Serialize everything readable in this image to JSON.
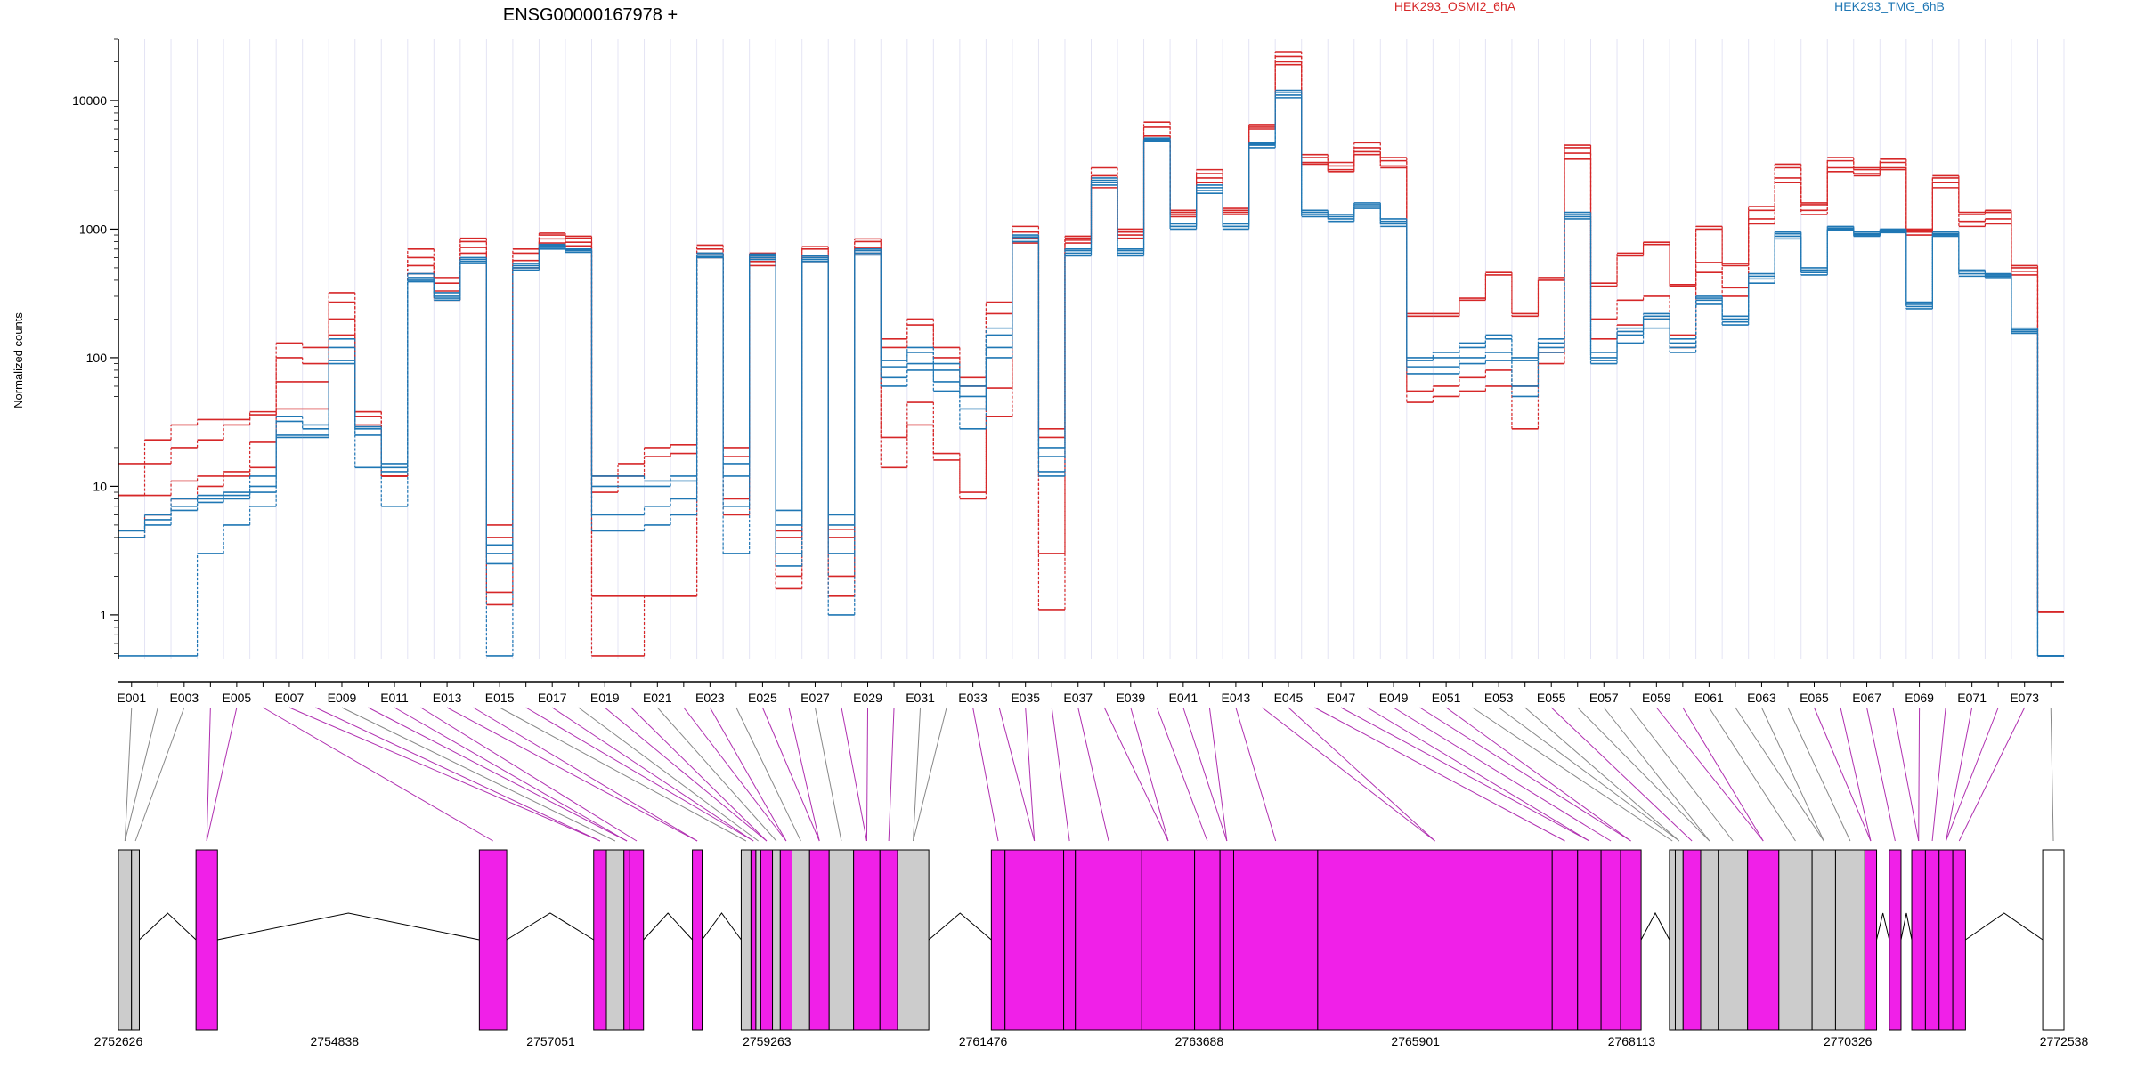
{
  "chart_data": {
    "type": "line",
    "title": "ENSG00000167978 +",
    "ylabel": "Normalized counts",
    "y_scale": "log",
    "ylim": [
      0.5,
      30000
    ],
    "y_ticks": [
      {
        "value": 1,
        "label": "1"
      },
      {
        "value": 10,
        "label": "10"
      },
      {
        "value": 100,
        "label": "100"
      },
      {
        "value": 1000,
        "label": "1000"
      },
      {
        "value": 10000,
        "label": "10000"
      }
    ],
    "exon_labels": [
      "E001",
      "E003",
      "E005",
      "E007",
      "E009",
      "E011",
      "E013",
      "E015",
      "E017",
      "E019",
      "E021",
      "E023",
      "E025",
      "E027",
      "E029",
      "E031",
      "E033",
      "E035",
      "E037",
      "E039",
      "E041",
      "E043",
      "E045",
      "E047",
      "E049",
      "E051",
      "E053",
      "E055",
      "E057",
      "E059",
      "E061",
      "E063",
      "E065",
      "E067",
      "E069",
      "E071",
      "E073"
    ],
    "legend_placement": "top",
    "series": [
      {
        "name": "HEK293_OSMI2_6hA",
        "color": "#d62728",
        "values": [
          15,
          23,
          30,
          33,
          33,
          38,
          130,
          120,
          320,
          38,
          12,
          700,
          420,
          850,
          5,
          700,
          930,
          880,
          12,
          15,
          20,
          21,
          750,
          20,
          650,
          4.5,
          730,
          4.6,
          840,
          140,
          200,
          120,
          70,
          270,
          1050,
          28,
          880,
          3000,
          1000,
          6800,
          1400,
          2900,
          1450,
          6500,
          24000,
          3800,
          3300,
          4700,
          3600,
          220,
          220,
          290,
          460,
          220,
          420,
          4500,
          380,
          650,
          790,
          370,
          1050,
          540,
          1500,
          3200,
          1600,
          3600,
          3000,
          3500,
          1000,
          2600,
          1350,
          1400,
          520,
          1.05
        ]
      },
      {
        "name": "HEK293_OSMI2_6hA",
        "color": "#d62728",
        "values": [
          8.5,
          15,
          20,
          23,
          30,
          36,
          100,
          90,
          270,
          38,
          12,
          600,
          380,
          800,
          4,
          650,
          900,
          850,
          9,
          12,
          17,
          18,
          700,
          17,
          600,
          4,
          700,
          4,
          800,
          120,
          180,
          100,
          60,
          220,
          950,
          24,
          850,
          2600,
          950,
          6200,
          1350,
          2700,
          1400,
          6400,
          22000,
          3600,
          3100,
          4300,
          3400,
          210,
          210,
          280,
          440,
          210,
          400,
          4300,
          360,
          620,
          760,
          360,
          1000,
          520,
          1400,
          3000,
          1550,
          3400,
          2900,
          3300,
          980,
          2500,
          1300,
          1350,
          500,
          1.05
        ]
      },
      {
        "name": "HEK293_OSMI2_6hA",
        "color": "#d62728",
        "values": [
          8.5,
          8.5,
          11,
          12,
          13,
          22,
          65,
          65,
          200,
          35,
          12,
          520,
          330,
          720,
          1.5,
          570,
          840,
          790,
          1.4,
          1.4,
          1.4,
          1.4,
          650,
          8,
          560,
          2,
          620,
          2,
          720,
          24,
          45,
          18,
          9,
          58,
          850,
          3,
          820,
          2300,
          900,
          5300,
          1300,
          2500,
          1350,
          6200,
          20000,
          3300,
          2900,
          4000,
          3100,
          55,
          60,
          70,
          80,
          60,
          110,
          3900,
          200,
          280,
          300,
          150,
          550,
          350,
          1200,
          2500,
          1400,
          3000,
          2700,
          3000,
          950,
          2300,
          1150,
          1200,
          470,
          1.05
        ]
      },
      {
        "name": "HEK293_OSMI2_6hA",
        "color": "#d62728",
        "values": [
          4,
          6,
          8,
          10,
          12,
          14,
          40,
          40,
          150,
          30,
          12,
          450,
          280,
          650,
          1.2,
          500,
          780,
          740,
          0.48,
          0.48,
          1.4,
          1.4,
          600,
          6,
          520,
          1.6,
          560,
          1.4,
          650,
          14,
          30,
          16,
          8,
          35,
          780,
          1.1,
          780,
          2100,
          850,
          4800,
          1250,
          2300,
          1300,
          6000,
          19000,
          3200,
          2800,
          3800,
          3000,
          45,
          50,
          55,
          60,
          28,
          90,
          3500,
          140,
          180,
          200,
          120,
          460,
          300,
          1100,
          2300,
          1300,
          2800,
          2600,
          2900,
          900,
          2100,
          1050,
          1100,
          440,
          1.05
        ]
      },
      {
        "name": "HEK293_TMG_6hB",
        "color": "#1f77b4",
        "values": [
          4.5,
          6,
          8,
          8.5,
          9,
          12,
          35,
          30,
          140,
          29,
          15,
          450,
          320,
          600,
          3.5,
          540,
          760,
          700,
          12,
          12,
          11,
          12,
          650,
          15,
          640,
          6.5,
          620,
          6,
          700,
          95,
          120,
          90,
          60,
          170,
          900,
          20,
          700,
          2500,
          700,
          5100,
          1100,
          2200,
          1100,
          4700,
          12000,
          1400,
          1300,
          1600,
          1200,
          100,
          110,
          130,
          150,
          100,
          140,
          1350,
          110,
          170,
          220,
          140,
          300,
          210,
          450,
          950,
          500,
          1050,
          950,
          1000,
          270,
          950,
          480,
          450,
          170,
          0.48
        ]
      },
      {
        "name": "HEK293_TMG_6hB",
        "color": "#1f77b4",
        "values": [
          4,
          5.5,
          7,
          8,
          8.5,
          10,
          32,
          28,
          120,
          28,
          14,
          420,
          300,
          580,
          3,
          520,
          740,
          690,
          10,
          10,
          10,
          11,
          630,
          12,
          620,
          5,
          600,
          5,
          680,
          85,
          110,
          80,
          50,
          150,
          870,
          17,
          680,
          2400,
          680,
          5000,
          1050,
          2100,
          1050,
          4600,
          11500,
          1350,
          1250,
          1550,
          1150,
          95,
          100,
          120,
          140,
          95,
          130,
          1300,
          100,
          160,
          210,
          130,
          290,
          200,
          430,
          920,
          480,
          1020,
          920,
          980,
          260,
          920,
          470,
          440,
          165,
          0.48
        ]
      },
      {
        "name": "HEK293_TMG_6hB",
        "color": "#1f77b4",
        "values": [
          4,
          5,
          6.5,
          7.5,
          8,
          9,
          25,
          25,
          95,
          25,
          13,
          400,
          290,
          560,
          2.5,
          500,
          720,
          680,
          6,
          6,
          7,
          8,
          610,
          7,
          600,
          3,
          580,
          3,
          650,
          70,
          90,
          65,
          40,
          120,
          840,
          13,
          650,
          2300,
          650,
          4900,
          1050,
          2000,
          1050,
          4500,
          11000,
          1300,
          1200,
          1500,
          1100,
          85,
          85,
          100,
          110,
          60,
          120,
          1250,
          95,
          150,
          200,
          120,
          280,
          190,
          410,
          880,
          460,
          1000,
          900,
          960,
          250,
          900,
          450,
          430,
          160,
          0.48
        ]
      },
      {
        "name": "HEK293_TMG_6hB",
        "color": "#1f77b4",
        "values": [
          0.48,
          0.48,
          0.48,
          3,
          5,
          7,
          24,
          24,
          90,
          14,
          7,
          390,
          280,
          540,
          0.48,
          480,
          700,
          660,
          4.5,
          4.5,
          5,
          6,
          600,
          3,
          580,
          2.4,
          560,
          1,
          630,
          60,
          80,
          55,
          28,
          100,
          800,
          12,
          620,
          2200,
          620,
          4800,
          1000,
          1900,
          1000,
          4300,
          10500,
          1250,
          1150,
          1450,
          1050,
          75,
          75,
          90,
          95,
          50,
          110,
          1200,
          90,
          130,
          170,
          110,
          260,
          180,
          380,
          840,
          440,
          980,
          880,
          940,
          240,
          880,
          430,
          420,
          155,
          0.48
        ]
      }
    ],
    "gene_model": {
      "coordinate_labels": [
        "2752626",
        "2754838",
        "2757051",
        "2759263",
        "2761476",
        "2763688",
        "2765901",
        "2768113",
        "2770326",
        "2772538"
      ],
      "coordinate_range": [
        2752626,
        2772538
      ],
      "highlight_color": "#f020e8",
      "non_highlight_color": "#cccccc",
      "exon_ranges": [
        {
          "start": 2752626,
          "end": 2752760,
          "highlight": false
        },
        {
          "start": 2752760,
          "end": 2752840,
          "highlight": false
        },
        {
          "start": 2753420,
          "end": 2753640,
          "highlight": true
        },
        {
          "start": 2756320,
          "end": 2756600,
          "highlight": true
        },
        {
          "start": 2757490,
          "end": 2757620,
          "highlight": true
        },
        {
          "start": 2757620,
          "end": 2757800,
          "highlight": false
        },
        {
          "start": 2757800,
          "end": 2757860,
          "highlight": true
        },
        {
          "start": 2757860,
          "end": 2758000,
          "highlight": true
        },
        {
          "start": 2758500,
          "end": 2758600,
          "highlight": true
        },
        {
          "start": 2759000,
          "end": 2759100,
          "highlight": false
        },
        {
          "start": 2759100,
          "end": 2759150,
          "highlight": true
        },
        {
          "start": 2759150,
          "end": 2759200,
          "highlight": false
        },
        {
          "start": 2759200,
          "end": 2759320,
          "highlight": true
        },
        {
          "start": 2759320,
          "end": 2759400,
          "highlight": false
        },
        {
          "start": 2759400,
          "end": 2759520,
          "highlight": true
        },
        {
          "start": 2759520,
          "end": 2759700,
          "highlight": false
        },
        {
          "start": 2759700,
          "end": 2759900,
          "highlight": true
        },
        {
          "start": 2759900,
          "end": 2760150,
          "highlight": false
        },
        {
          "start": 2760150,
          "end": 2760420,
          "highlight": true
        },
        {
          "start": 2760420,
          "end": 2760600,
          "highlight": true
        },
        {
          "start": 2760600,
          "end": 2760920,
          "highlight": false
        },
        {
          "start": 2761560,
          "end": 2761700,
          "highlight": true
        },
        {
          "start": 2761700,
          "end": 2762300,
          "highlight": true
        },
        {
          "start": 2762300,
          "end": 2762420,
          "highlight": true
        },
        {
          "start": 2762420,
          "end": 2763100,
          "highlight": true
        },
        {
          "start": 2763100,
          "end": 2763640,
          "highlight": true
        },
        {
          "start": 2763640,
          "end": 2763900,
          "highlight": true
        },
        {
          "start": 2763900,
          "end": 2764040,
          "highlight": true
        },
        {
          "start": 2764040,
          "end": 2764900,
          "highlight": true
        },
        {
          "start": 2764900,
          "end": 2767300,
          "highlight": true
        },
        {
          "start": 2767300,
          "end": 2767560,
          "highlight": true
        },
        {
          "start": 2767560,
          "end": 2767800,
          "highlight": true
        },
        {
          "start": 2767800,
          "end": 2768000,
          "highlight": true
        },
        {
          "start": 2768000,
          "end": 2768210,
          "highlight": true
        },
        {
          "start": 2768500,
          "end": 2768560,
          "highlight": false
        },
        {
          "start": 2768560,
          "end": 2768640,
          "highlight": false
        },
        {
          "start": 2768640,
          "end": 2768820,
          "highlight": true
        },
        {
          "start": 2768820,
          "end": 2769000,
          "highlight": false
        },
        {
          "start": 2769000,
          "end": 2769300,
          "highlight": false
        },
        {
          "start": 2769300,
          "end": 2769620,
          "highlight": true
        },
        {
          "start": 2769620,
          "end": 2769960,
          "highlight": false
        },
        {
          "start": 2769960,
          "end": 2770200,
          "highlight": false
        },
        {
          "start": 2770200,
          "end": 2770500,
          "highlight": false
        },
        {
          "start": 2770500,
          "end": 2770620,
          "highlight": true
        },
        {
          "start": 2770750,
          "end": 2770870,
          "highlight": true
        },
        {
          "start": 2770980,
          "end": 2771120,
          "highlight": true
        },
        {
          "start": 2771120,
          "end": 2771260,
          "highlight": true
        },
        {
          "start": 2771260,
          "end": 2771400,
          "highlight": true
        },
        {
          "start": 2771400,
          "end": 2771530,
          "highlight": true
        },
        {
          "start": 2772320,
          "end": 2772538,
          "highlight": false,
          "outline_only": true
        }
      ]
    }
  }
}
